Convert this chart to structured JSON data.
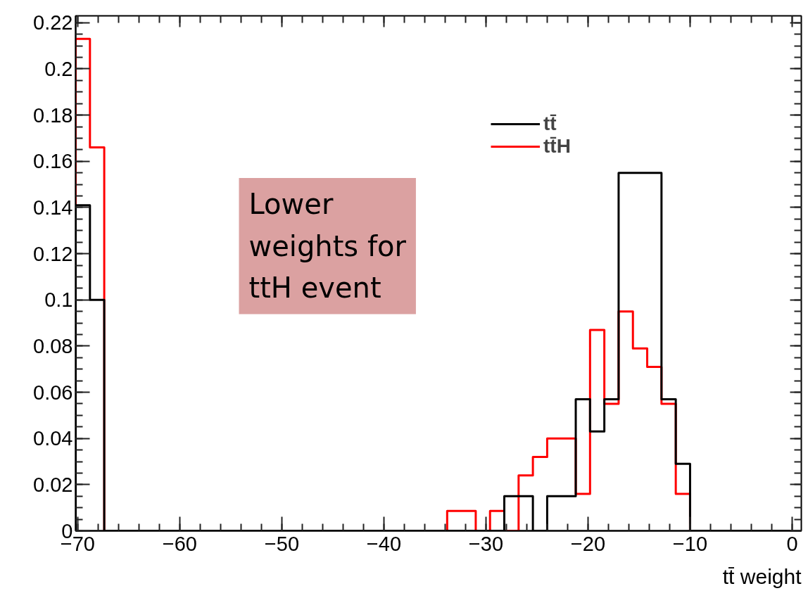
{
  "chart_data": {
    "type": "histogram",
    "xlabel": "tt̄ weight",
    "bins": [
      -70.2,
      -68.8,
      -67.4,
      -66.0,
      -64.6,
      -63.2,
      -61.8,
      -60.4,
      -59.0,
      -57.6,
      -56.2,
      -54.8,
      -53.4,
      -52.0,
      -50.6,
      -49.2,
      -47.8,
      -46.4,
      -45.0,
      -43.6,
      -42.2,
      -40.8,
      -39.4,
      -38.0,
      -36.6,
      -35.2,
      -33.8,
      -32.4,
      -31.0,
      -29.6,
      -28.2,
      -26.8,
      -25.4,
      -24.0,
      -22.6,
      -21.2,
      -19.8,
      -18.4,
      -17.0,
      -15.6,
      -14.2,
      -12.8,
      -11.4,
      -10.0,
      -8.6,
      -7.2,
      -5.8,
      -4.4,
      -3.0,
      -1.6,
      -0.2
    ],
    "series": [
      {
        "name": "tt̄",
        "color": "#000000",
        "values": [
          0.141,
          0.1,
          0,
          0,
          0,
          0,
          0,
          0,
          0,
          0,
          0,
          0,
          0,
          0,
          0,
          0,
          0,
          0,
          0,
          0,
          0,
          0,
          0,
          0,
          0,
          0,
          0,
          0,
          0,
          0,
          0.015,
          0.015,
          0,
          0.015,
          0.015,
          0.057,
          0.043,
          0.057,
          0.155,
          0.155,
          0.155,
          0.057,
          0.029,
          0,
          0,
          0,
          0,
          0,
          0,
          0
        ]
      },
      {
        "name": "tt̄H",
        "color": "#ff0000",
        "values": [
          0.213,
          0.166,
          0,
          0,
          0,
          0,
          0,
          0,
          0,
          0,
          0,
          0,
          0,
          0,
          0,
          0,
          0,
          0,
          0,
          0,
          0,
          0,
          0,
          0,
          0,
          0,
          0.0086,
          0.0086,
          0,
          0.0086,
          0,
          0.024,
          0.032,
          0.04,
          0.04,
          0.016,
          0.087,
          0.055,
          0.095,
          0.079,
          0.071,
          0.055,
          0.016,
          0,
          0,
          0,
          0,
          0,
          0,
          0
        ]
      }
    ],
    "xlim": [
      -70.2,
      0.9
    ],
    "ylim": [
      0,
      0.223
    ],
    "xticks": [
      -70,
      -60,
      -50,
      -40,
      -30,
      -20,
      -10,
      0
    ],
    "yticks": [
      0,
      0.02,
      0.04,
      0.06,
      0.08,
      0.1,
      0.12,
      0.14,
      0.16,
      0.18,
      0.2,
      0.22
    ],
    "legend": "top right",
    "grid": false,
    "annotations": [
      "Lower\nweights for\nttH event"
    ]
  }
}
